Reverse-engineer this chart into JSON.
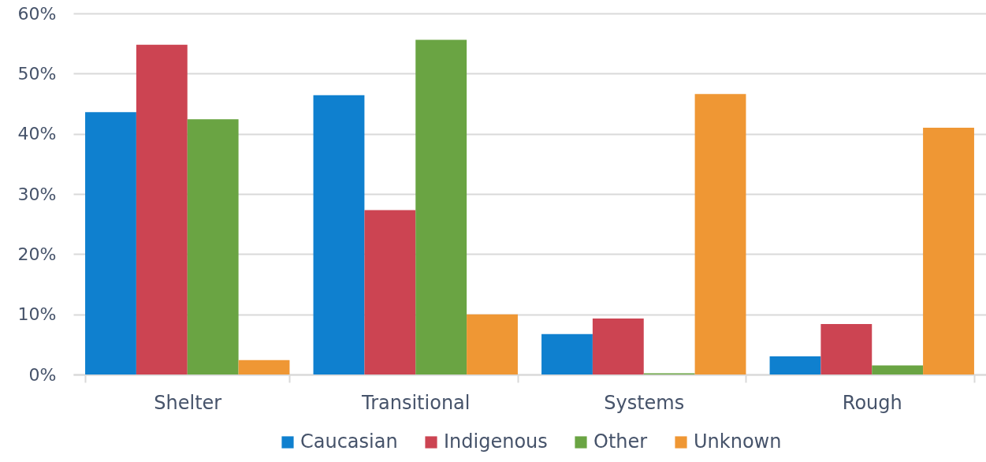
{
  "chart_data": {
    "type": "bar",
    "categories": [
      "Shelter",
      "Transitional",
      "Systems",
      "Rough"
    ],
    "series": [
      {
        "name": "Caucasian",
        "color": "#0f80cf",
        "values": [
          43.6,
          46.4,
          6.7,
          3.0
        ]
      },
      {
        "name": "Indigenous",
        "color": "#cc4452",
        "values": [
          54.8,
          27.3,
          9.3,
          8.4
        ]
      },
      {
        "name": "Other",
        "color": "#6aa443",
        "values": [
          42.4,
          55.6,
          0.2,
          1.5
        ]
      },
      {
        "name": "Unknown",
        "color": "#ef9734",
        "values": [
          2.4,
          10.0,
          46.6,
          41.0
        ]
      }
    ],
    "ylim": [
      0,
      60
    ],
    "yticks": [
      {
        "value": 0,
        "label": "0%"
      },
      {
        "value": 10,
        "label": "10%"
      },
      {
        "value": 20,
        "label": "20%"
      },
      {
        "value": 30,
        "label": "30%"
      },
      {
        "value": 40,
        "label": "40%"
      },
      {
        "value": 50,
        "label": "50%"
      },
      {
        "value": 60,
        "label": "60%"
      }
    ],
    "grid": "y",
    "legend": "bottom"
  }
}
